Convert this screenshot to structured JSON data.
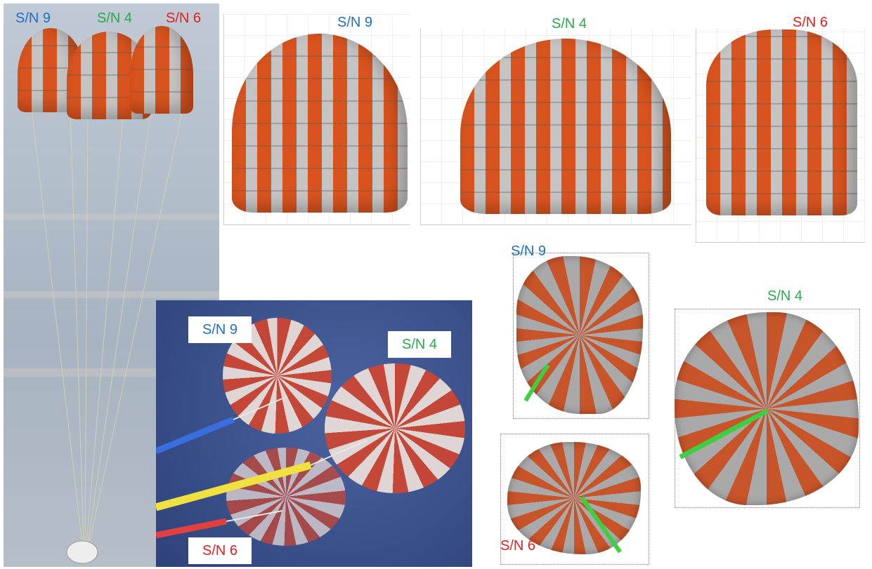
{
  "flight_photo": {
    "labels": [
      "S/N 9",
      "S/N 4",
      "S/N 6"
    ]
  },
  "inset_photo": {
    "labels": [
      "S/N 9",
      "S/N 4",
      "S/N 6"
    ]
  },
  "side_views": [
    {
      "label": "S/N 9"
    },
    {
      "label": "S/N 4"
    },
    {
      "label": "S/N 6"
    }
  ],
  "top_views": [
    {
      "label": "S/N 9"
    },
    {
      "label": "S/N 6"
    },
    {
      "label": "S/N 4"
    }
  ]
}
